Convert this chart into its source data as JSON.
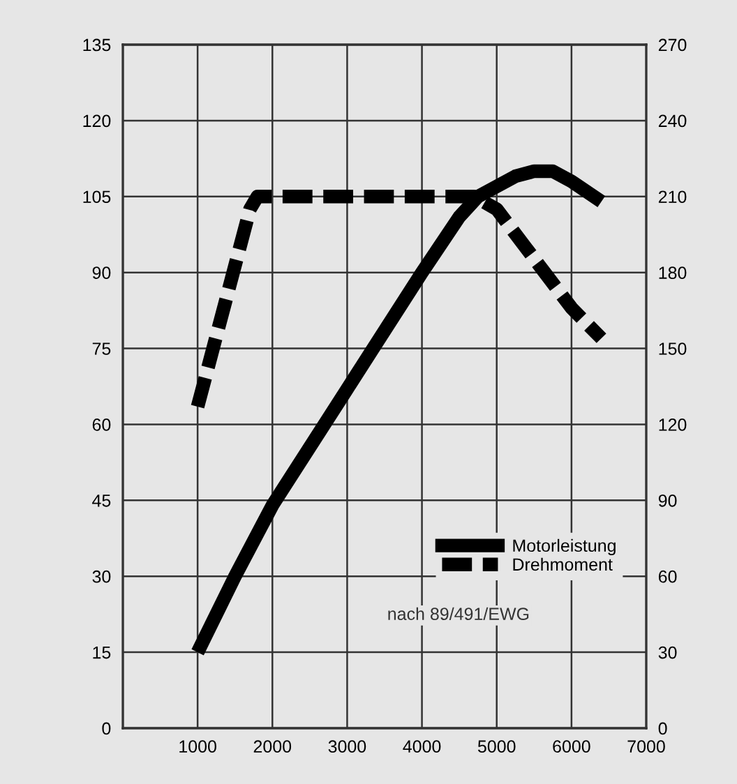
{
  "chart_data": {
    "type": "line",
    "series": [
      {
        "name": "Motorleistung",
        "color": "#000000",
        "line_style": "solid",
        "values": [
          15,
          30,
          44,
          67,
          90,
          101,
          105,
          107,
          109,
          110,
          110,
          108,
          104
        ],
        "x": [
          1000,
          1500,
          2000,
          3000,
          4000,
          4500,
          4750,
          5000,
          5250,
          5500,
          5750,
          6000,
          6400
        ]
      },
      {
        "name": "Drehmoment",
        "color": "#000000",
        "line_style": "dashed",
        "axis": "y2",
        "values": [
          127,
          205,
          210,
          210,
          205,
          166,
          154
        ],
        "x": [
          1000,
          1700,
          1800,
          4700,
          5000,
          6000,
          6400
        ]
      }
    ],
    "xlim": [
      0,
      7000
    ],
    "xticks": [
      {
        "value": 0,
        "label": null
      },
      1000,
      2000,
      3000,
      4000,
      5000,
      6000,
      7000
    ],
    "ylim": [
      0,
      135
    ],
    "yticks": [
      0,
      15,
      30,
      45,
      60,
      75,
      90,
      105,
      120,
      135
    ],
    "y2lim": [
      0,
      270
    ],
    "y2ticks": [
      0,
      30,
      60,
      90,
      120,
      150,
      180,
      210,
      240,
      270
    ],
    "grid": true,
    "legend": "bottom right",
    "marker": "none",
    "annotations": [
      "nach 89/491/EWG"
    ]
  }
}
